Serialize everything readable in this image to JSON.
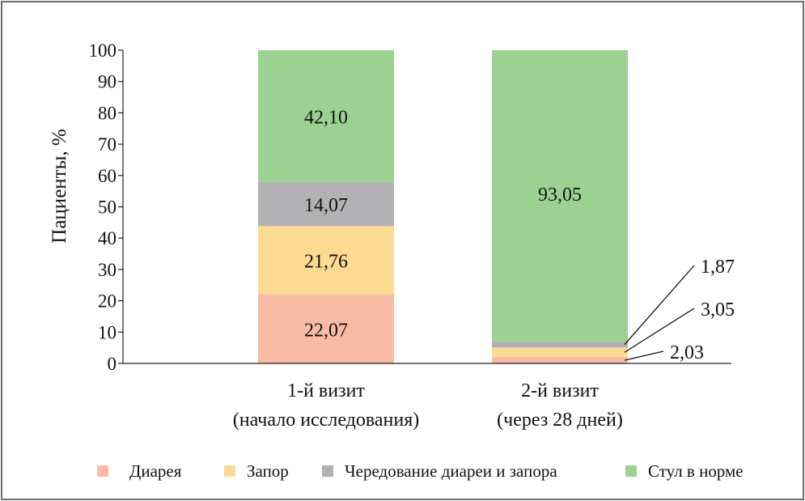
{
  "chart_data": {
    "type": "bar",
    "stacked": true,
    "title": "",
    "xlabel": "",
    "ylabel": "Пациенты, %",
    "ylim": [
      0,
      100
    ],
    "yticks": [
      0,
      10,
      20,
      30,
      40,
      50,
      60,
      70,
      80,
      90,
      100
    ],
    "categories": [
      [
        "1-й визит",
        "(начало исследования)"
      ],
      [
        "2-й визит",
        "(через 28 дней)"
      ]
    ],
    "series": [
      {
        "name": "Диарея",
        "color": "#F8BBA5",
        "values": [
          22.07,
          2.03
        ],
        "labels": [
          "22,07",
          "2,03"
        ]
      },
      {
        "name": "Запор",
        "color": "#FDDA92",
        "values": [
          21.76,
          3.05
        ],
        "labels": [
          "21,76",
          "3,05"
        ]
      },
      {
        "name": "Чередование диареи и запора",
        "color": "#B2B2B4",
        "values": [
          14.07,
          1.87
        ],
        "labels": [
          "14,07",
          "1,87"
        ]
      },
      {
        "name": "Стул в норме",
        "color": "#9BD292",
        "values": [
          42.1,
          93.05
        ],
        "labels": [
          "42,10",
          "93,05"
        ]
      }
    ],
    "grid": false,
    "legend_position": "bottom"
  }
}
